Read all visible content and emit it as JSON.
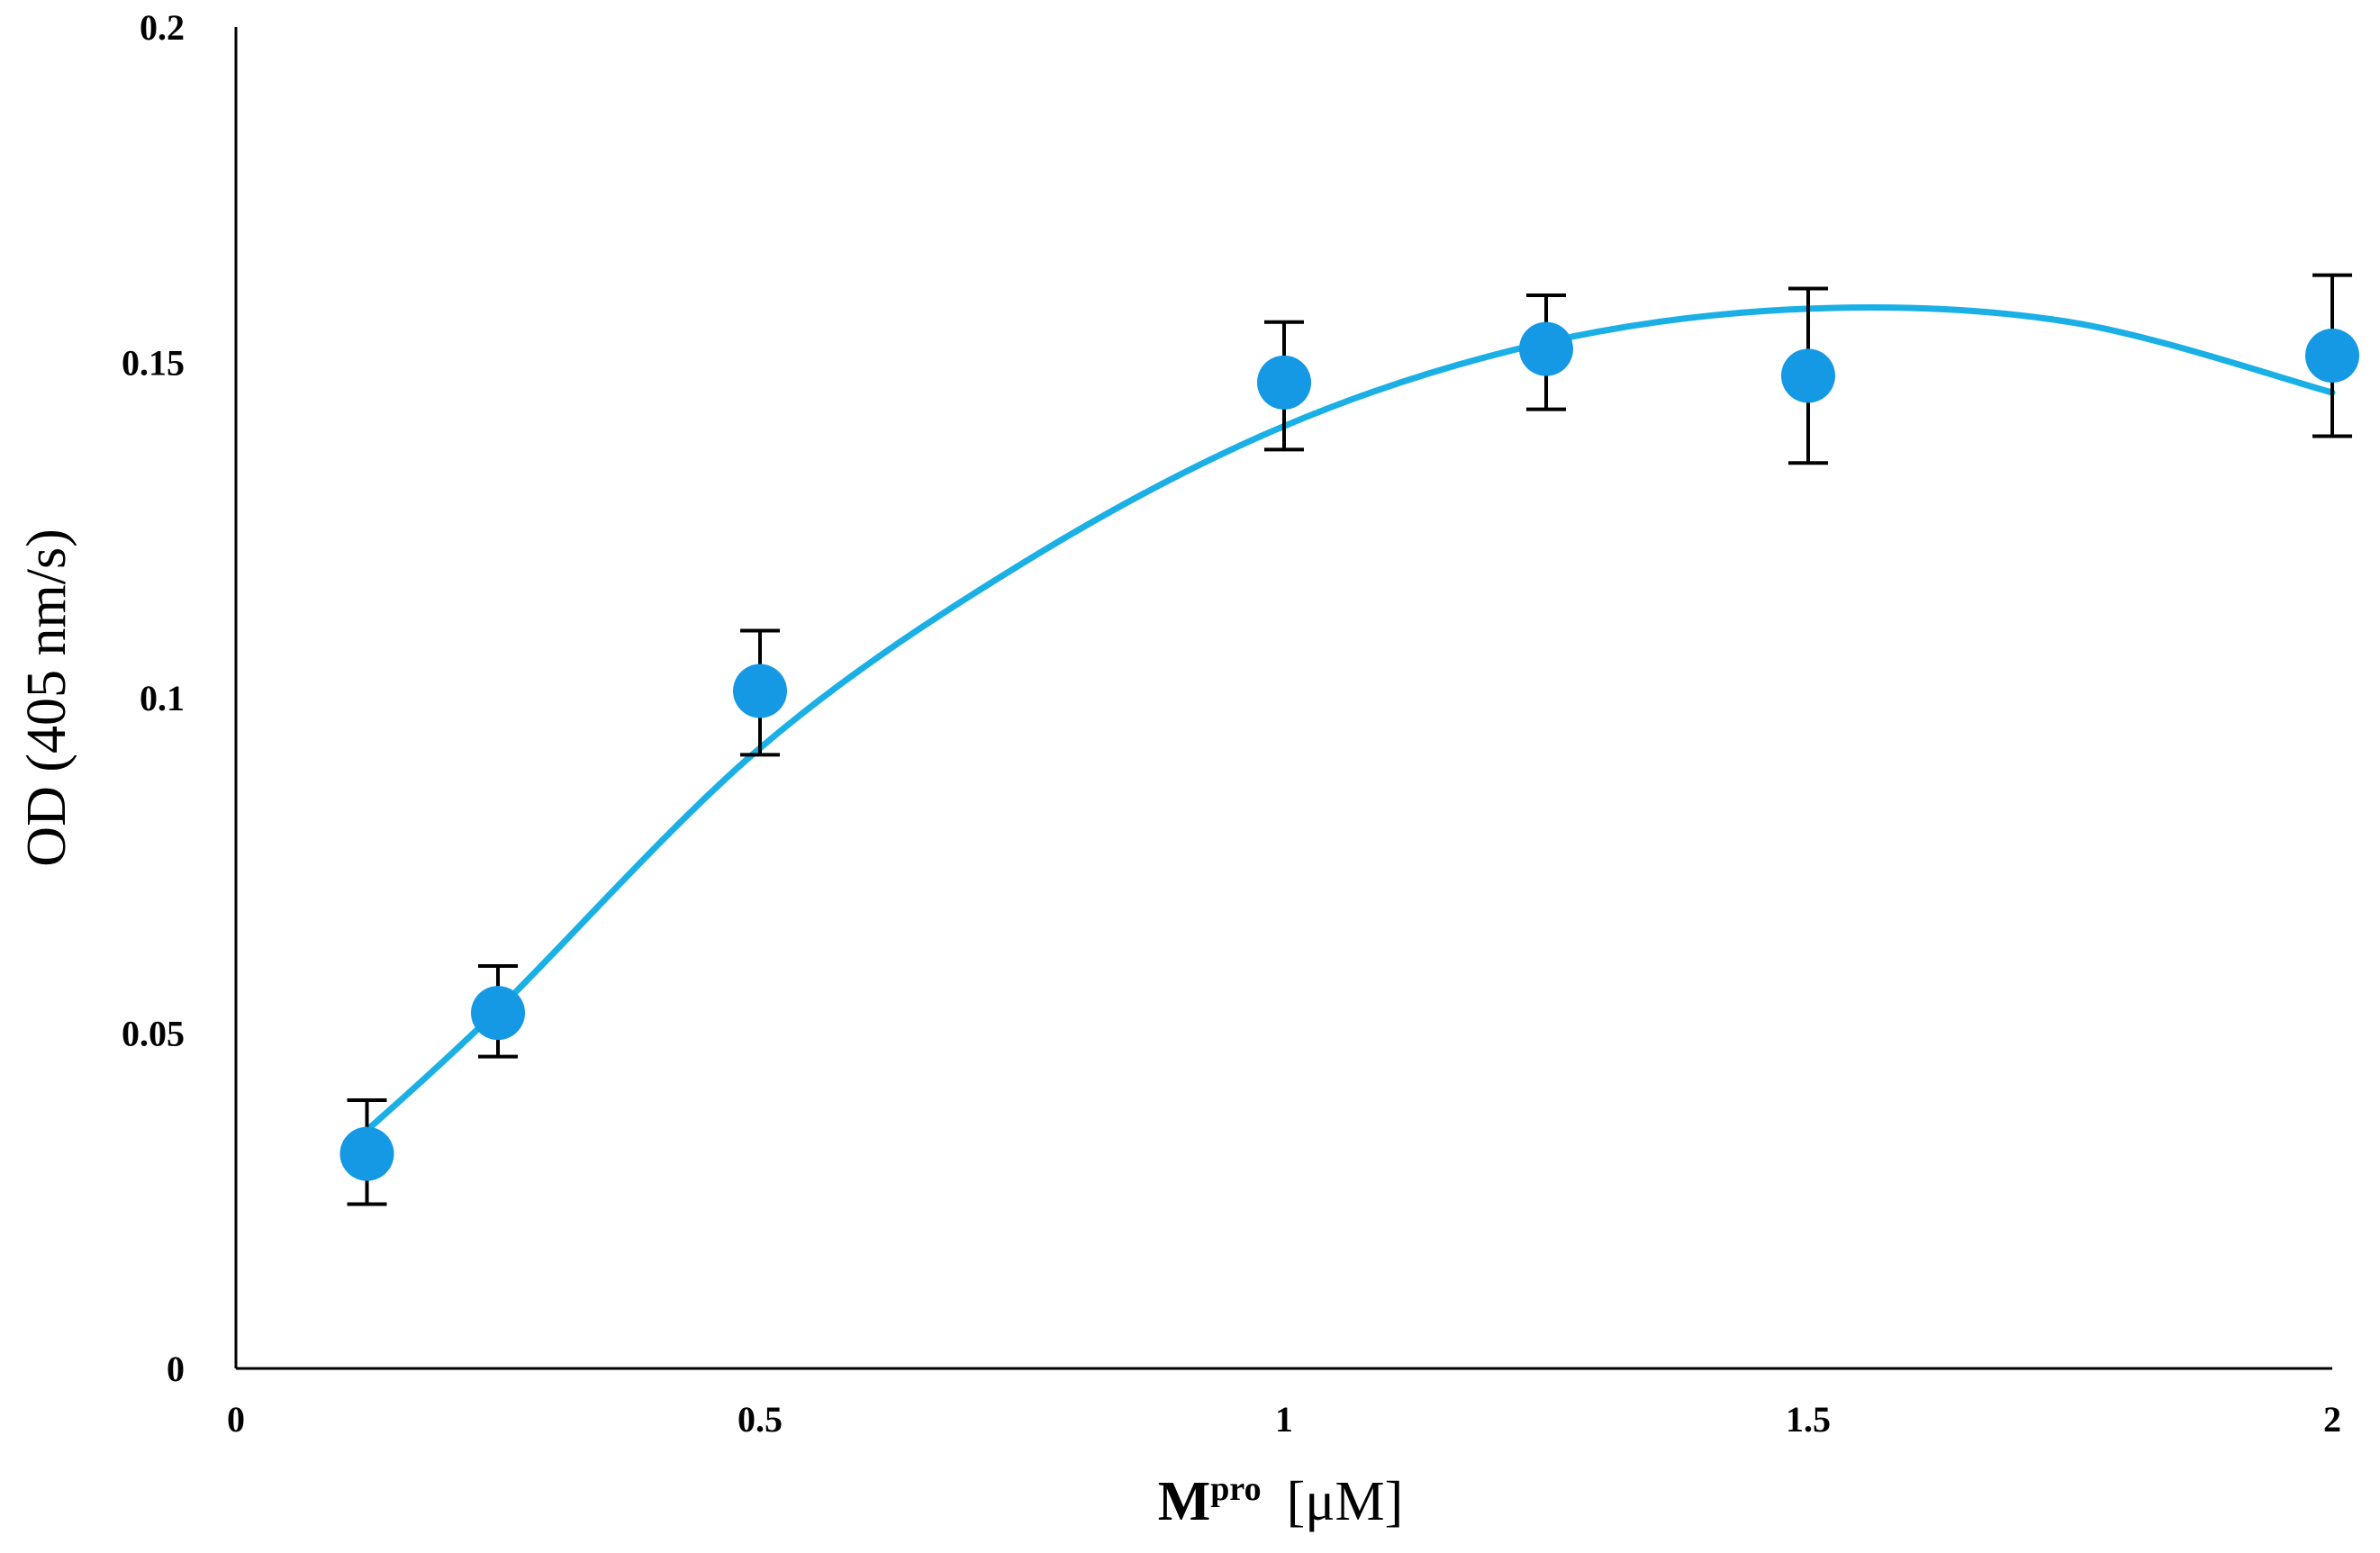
{
  "chart_data": {
    "type": "scatter",
    "title": "",
    "xlabel_main": "M",
    "xlabel_sup": "pro",
    "xlabel_unit": "[μM]",
    "ylabel": "OD (405 nm/s)",
    "xlim": [
      0,
      2
    ],
    "ylim": [
      0,
      0.2
    ],
    "x_ticks": [
      0,
      0.5,
      1,
      1.5,
      2
    ],
    "x_tick_labels": [
      "0",
      "0.5",
      "1",
      "1.5",
      "2"
    ],
    "y_ticks": [
      0,
      0.05,
      0.1,
      0.15,
      0.2
    ],
    "y_tick_labels": [
      "0",
      "0.05",
      "0.1",
      "0.15",
      "0.2"
    ],
    "grid": false,
    "series": [
      {
        "name": "OD",
        "x": [
          0.125,
          0.25,
          0.5,
          1.0,
          1.25,
          1.5,
          2.0
        ],
        "y": [
          0.032,
          0.053,
          0.101,
          0.147,
          0.152,
          0.148,
          0.151
        ],
        "err_low": [
          0.0245,
          0.0465,
          0.0915,
          0.137,
          0.143,
          0.135,
          0.139
        ],
        "err_high": [
          0.04,
          0.06,
          0.11,
          0.156,
          0.16,
          0.161,
          0.163
        ]
      }
    ],
    "fit_curve": {
      "type": "polynomial-2",
      "x": [
        0.125,
        0.25,
        0.5,
        0.75,
        1.0,
        1.25,
        1.5,
        1.75,
        2.0
      ],
      "y": [
        0.0355,
        0.0535,
        0.0925,
        0.12,
        0.1405,
        0.153,
        0.158,
        0.156,
        0.1455
      ]
    },
    "colors": {
      "marker": "#1599e5",
      "fit_line": "#1ab0e5",
      "error_bar": "#000000"
    }
  }
}
